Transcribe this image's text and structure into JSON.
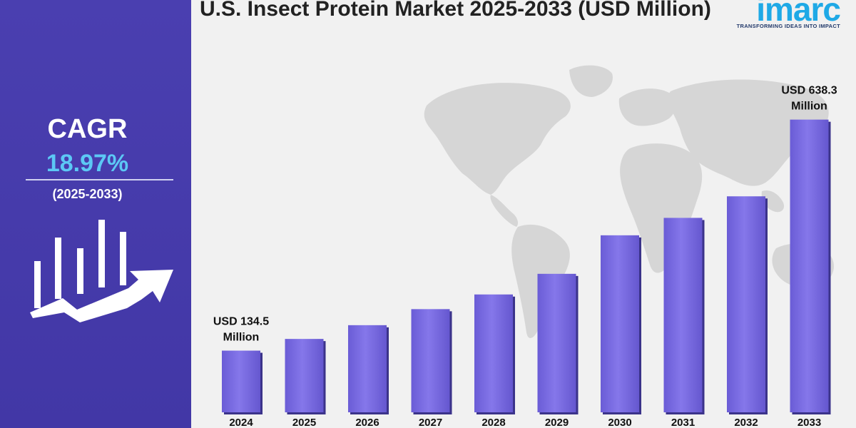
{
  "title": "U.S. Insect Protein Market 2025-2033 (USD Million)",
  "logo": {
    "name": "imarc",
    "tagline": "TRANSFORMING IDEAS INTO IMPACT"
  },
  "cagr": {
    "label": "CAGR",
    "value": "18.97%",
    "period": "(2025-2033)"
  },
  "colors": {
    "panel": "#4a3fb0",
    "bar": "#7b6ee0",
    "cagr_value": "#5cc8f5",
    "logo": "#1fa9e6"
  },
  "chart_data": {
    "type": "bar",
    "title": "U.S. Insect Protein Market 2025-2033 (USD Million)",
    "categories": [
      "2024",
      "2025",
      "2026",
      "2027",
      "2028",
      "2029",
      "2030",
      "2031",
      "2032",
      "2033"
    ],
    "values": [
      134.5,
      160,
      190,
      225,
      257,
      302,
      386,
      424,
      471,
      638.3
    ],
    "ylim": [
      0,
      700
    ],
    "grid": false,
    "annotations": [
      {
        "category": "2024",
        "lines": [
          "USD 134.5",
          "Million"
        ]
      },
      {
        "category": "2033",
        "lines": [
          "USD 638.3",
          "Million"
        ]
      }
    ]
  }
}
